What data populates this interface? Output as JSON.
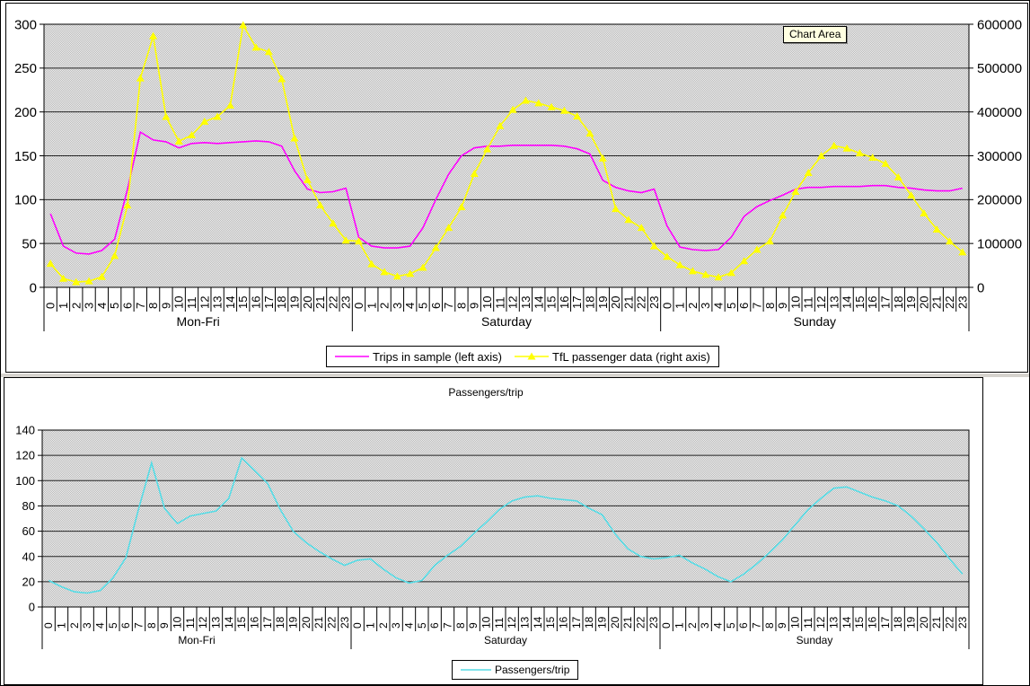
{
  "tooltip": {
    "label": "Chart Area"
  },
  "between_panels_strip_color": "#d6d3ce",
  "chart_data": [
    {
      "type": "line",
      "title": "",
      "legend_position": "bottom",
      "grid": true,
      "plot_bg": "dithered-gray",
      "day_groups": [
        "Mon-Fri",
        "Saturday",
        "Sunday"
      ],
      "hour_labels": [
        "0",
        "1",
        "2",
        "3",
        "4",
        "5",
        "6",
        "7",
        "8",
        "9",
        "10",
        "11",
        "12",
        "13",
        "14",
        "15",
        "16",
        "17",
        "18",
        "19",
        "20",
        "21",
        "22",
        "23"
      ],
      "left_axis": {
        "min": 0,
        "max": 300,
        "ticks": [
          0,
          50,
          100,
          150,
          200,
          250,
          300
        ]
      },
      "right_axis": {
        "min": 0,
        "max": 600000,
        "ticks": [
          0,
          100000,
          200000,
          300000,
          400000,
          500000,
          600000
        ]
      },
      "series": [
        {
          "name": "Trips in sample (left axis)",
          "color": "#FF00FF",
          "axis": "left",
          "marker": "none",
          "values": [
            84,
            47,
            39,
            38,
            42,
            55,
            112,
            177,
            168,
            166,
            159,
            164,
            165,
            164,
            165,
            166,
            167,
            166,
            161,
            133,
            112,
            108,
            109,
            113,
            57,
            47,
            45,
            45,
            47,
            68,
            100,
            129,
            150,
            159,
            161,
            161,
            162,
            162,
            162,
            162,
            161,
            158,
            152,
            122,
            114,
            110,
            108,
            112,
            70,
            46,
            43,
            42,
            43,
            57,
            81,
            92,
            99,
            105,
            112,
            114,
            114,
            115,
            115,
            115,
            116,
            116,
            114,
            113,
            111,
            110,
            110,
            113
          ]
        },
        {
          "name": "TfL passenger data (right axis)",
          "color": "#FFFF00",
          "axis": "right",
          "marker": "triangle",
          "values": [
            54000,
            20000,
            12000,
            14000,
            24000,
            72000,
            187000,
            477000,
            573000,
            389000,
            333000,
            347000,
            378000,
            389000,
            415000,
            598000,
            547000,
            537000,
            475000,
            340000,
            245000,
            187000,
            146000,
            107000,
            105000,
            53000,
            35000,
            25000,
            31000,
            45000,
            90000,
            136000,
            183000,
            259000,
            315000,
            368000,
            405000,
            426000,
            420000,
            411000,
            403000,
            390000,
            351000,
            294000,
            179000,
            154000,
            136000,
            94000,
            70000,
            51000,
            37000,
            29000,
            23000,
            33000,
            60000,
            86000,
            105000,
            164000,
            218000,
            261000,
            300000,
            323000,
            317000,
            306000,
            296000,
            282000,
            251000,
            210000,
            169000,
            132000,
            105000,
            80000
          ]
        }
      ]
    },
    {
      "type": "line",
      "title": "Passengers/trip",
      "legend_position": "bottom",
      "grid": true,
      "plot_bg": "dithered-gray",
      "day_groups": [
        "Mon-Fri",
        "Saturday",
        "Sunday"
      ],
      "hour_labels": [
        "0",
        "1",
        "2",
        "3",
        "4",
        "5",
        "6",
        "7",
        "8",
        "9",
        "10",
        "11",
        "12",
        "13",
        "14",
        "15",
        "16",
        "17",
        "18",
        "19",
        "20",
        "21",
        "22",
        "23"
      ],
      "left_axis": {
        "min": 0,
        "max": 140,
        "ticks": [
          0,
          20,
          40,
          60,
          80,
          100,
          120,
          140
        ]
      },
      "series": [
        {
          "name": "Passengers/trip",
          "color": "#55DCE6",
          "axis": "left",
          "marker": "none",
          "values": [
            21,
            16,
            12,
            11,
            13,
            23,
            39,
            78,
            114,
            78,
            66,
            72,
            74,
            76,
            86,
            118,
            108,
            98,
            77,
            60,
            51,
            44,
            38,
            33,
            37,
            38,
            30,
            23,
            19,
            21,
            33,
            41,
            48,
            58,
            67,
            77,
            84,
            87,
            88,
            86,
            85,
            84,
            78,
            73,
            58,
            46,
            40,
            38,
            39,
            41,
            35,
            30,
            24,
            20,
            26,
            34,
            43,
            53,
            65,
            77,
            86,
            94,
            95,
            91,
            87,
            84,
            80,
            72,
            62,
            51,
            38,
            26
          ]
        }
      ]
    }
  ]
}
